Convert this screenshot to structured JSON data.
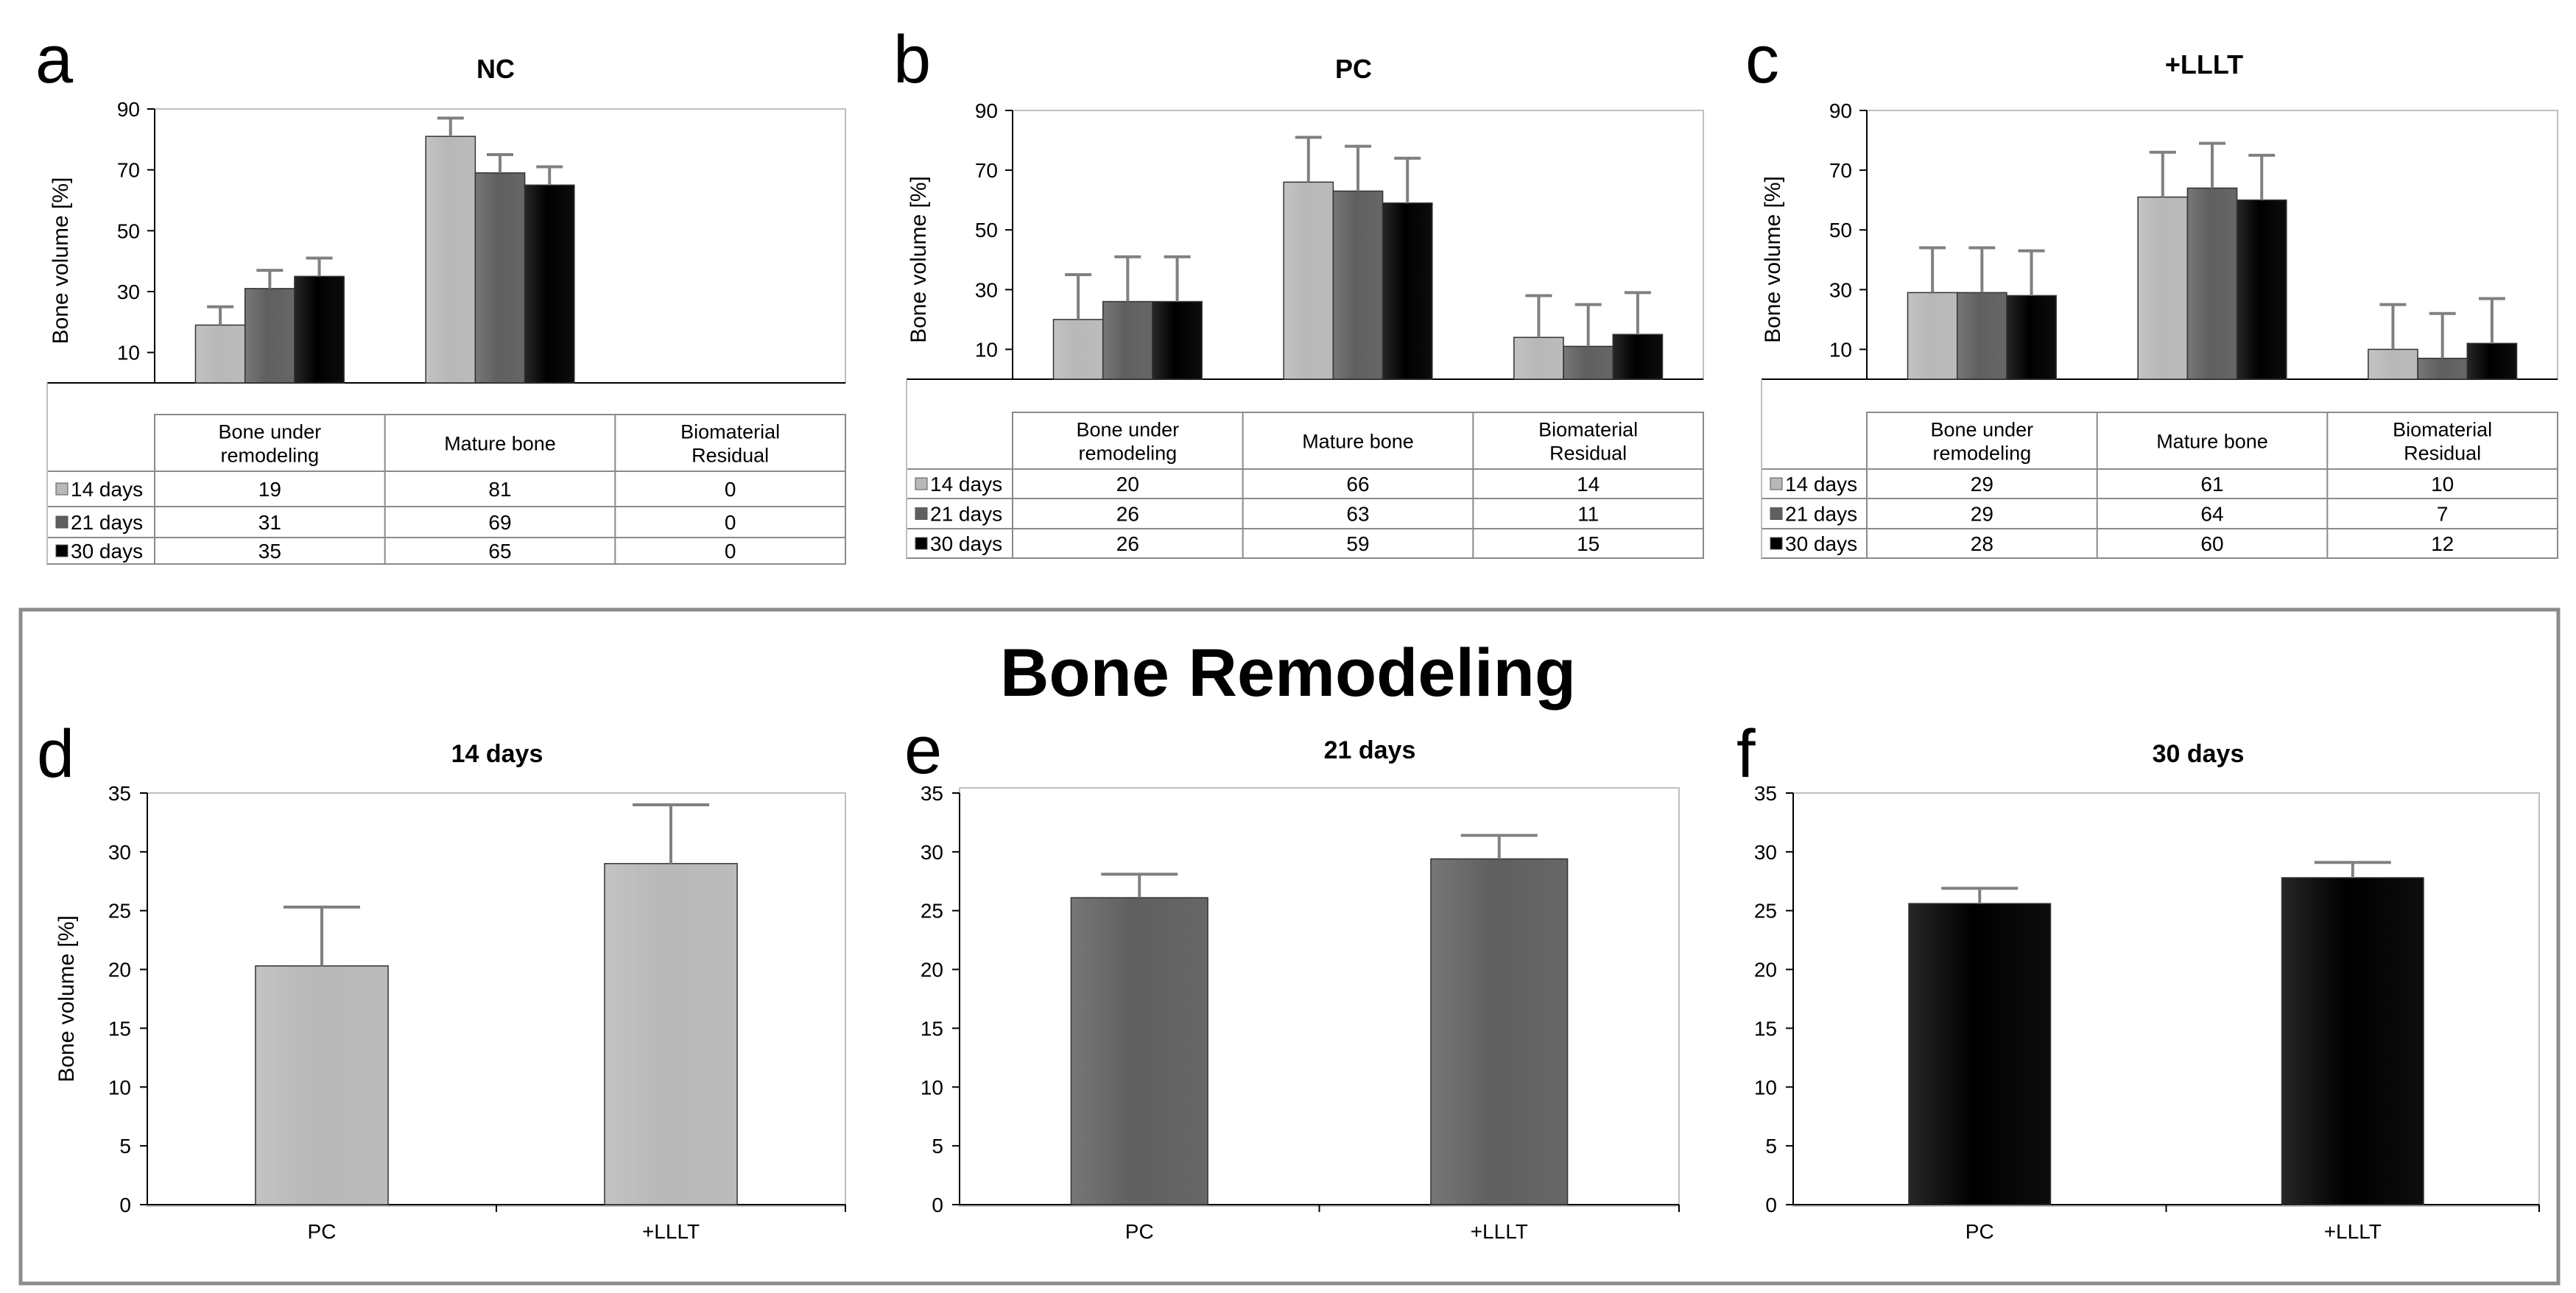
{
  "figure": {
    "bottom_title": "Bone Remodeling"
  },
  "colors": {
    "d14": "#b8b8b8",
    "d21": "#5f5f5f",
    "d30": "#000000",
    "axis": "#000000",
    "frame": "#bfbfbf",
    "error": "#808080"
  },
  "chart_data": [
    {
      "panel": "a",
      "type": "bar",
      "title": "NC",
      "ylabel": "Bone volume [%]",
      "ticks": [
        10,
        30,
        50,
        70,
        90
      ],
      "ylim": [
        0,
        90
      ],
      "categories": [
        "Bone under remodeling",
        "Mature bone",
        "Biomaterial Residual"
      ],
      "category_lines": [
        [
          "Bone under",
          "remodeling"
        ],
        [
          "Mature bone"
        ],
        [
          "Biomaterial",
          "Residual"
        ]
      ],
      "series": [
        {
          "name": "14 days",
          "values": [
            19,
            81,
            0
          ],
          "errors": [
            6,
            6,
            0
          ]
        },
        {
          "name": "21 days",
          "values": [
            31,
            69,
            0
          ],
          "errors": [
            6,
            6,
            0
          ]
        },
        {
          "name": "30 days",
          "values": [
            35,
            65,
            0
          ],
          "errors": [
            6,
            6,
            0
          ]
        }
      ]
    },
    {
      "panel": "b",
      "type": "bar",
      "title": "PC",
      "ylabel": "Bone volume [%]",
      "ticks": [
        10,
        30,
        50,
        70,
        90
      ],
      "ylim": [
        0,
        90
      ],
      "categories": [
        "Bone under remodeling",
        "Mature bone",
        "Biomaterial Residual"
      ],
      "category_lines": [
        [
          "Bone under",
          "remodeling"
        ],
        [
          "Mature bone"
        ],
        [
          "Biomaterial",
          "Residual"
        ]
      ],
      "series": [
        {
          "name": "14 days",
          "values": [
            20,
            66,
            14
          ],
          "errors": [
            15,
            15,
            14
          ]
        },
        {
          "name": "21 days",
          "values": [
            26,
            63,
            11
          ],
          "errors": [
            15,
            15,
            14
          ]
        },
        {
          "name": "30 days",
          "values": [
            26,
            59,
            15
          ],
          "errors": [
            15,
            15,
            14
          ]
        }
      ]
    },
    {
      "panel": "c",
      "type": "bar",
      "title": "+LLLT",
      "ylabel": "Bone volume [%]",
      "ticks": [
        10,
        30,
        50,
        70,
        90
      ],
      "ylim": [
        0,
        90
      ],
      "categories": [
        "Bone under remodeling",
        "Mature bone",
        "Biomaterial Residual"
      ],
      "category_lines": [
        [
          "Bone under",
          "remodeling"
        ],
        [
          "Mature bone"
        ],
        [
          "Biomaterial",
          "Residual"
        ]
      ],
      "series": [
        {
          "name": "14 days",
          "values": [
            29,
            61,
            10
          ],
          "errors": [
            15,
            15,
            15
          ]
        },
        {
          "name": "21 days",
          "values": [
            29,
            64,
            7
          ],
          "errors": [
            15,
            15,
            15
          ]
        },
        {
          "name": "30 days",
          "values": [
            28,
            60,
            12
          ],
          "errors": [
            15,
            15,
            15
          ]
        }
      ]
    },
    {
      "panel": "d",
      "type": "bar",
      "title": "14 days",
      "ylabel": "Bone volume [%]",
      "ticks": [
        0,
        5,
        10,
        15,
        20,
        25,
        30,
        35
      ],
      "ylim": [
        0,
        35
      ],
      "categories": [
        "PC",
        "+LLLT"
      ],
      "color_key": "d14",
      "values": [
        20.3,
        29
      ],
      "errors": [
        5,
        5
      ]
    },
    {
      "panel": "e",
      "type": "bar",
      "title": "21 days",
      "ylabel": "",
      "ticks": [
        0,
        5,
        10,
        15,
        20,
        25,
        30,
        35
      ],
      "ylim": [
        0,
        35
      ],
      "categories": [
        "PC",
        "+LLLT"
      ],
      "color_key": "d21",
      "values": [
        26.1,
        29.4
      ],
      "errors": [
        2,
        2
      ]
    },
    {
      "panel": "f",
      "type": "bar",
      "title": "30 days",
      "ylabel": "",
      "ticks": [
        0,
        5,
        10,
        15,
        20,
        25,
        30,
        35
      ],
      "ylim": [
        0,
        35
      ],
      "categories": [
        "PC",
        "+LLLT"
      ],
      "color_key": "d30",
      "values": [
        25.6,
        27.8
      ],
      "errors": [
        1.3,
        1.3
      ]
    }
  ]
}
